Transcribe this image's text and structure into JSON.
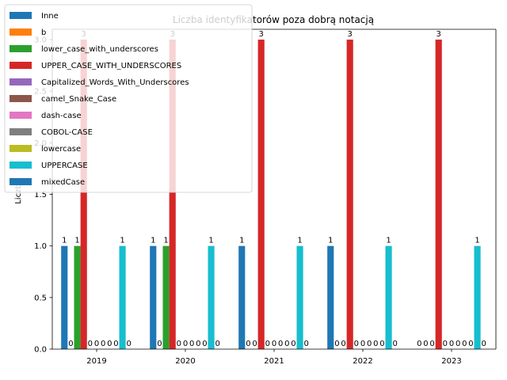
{
  "chart_data": {
    "type": "bar",
    "title": "Liczba identyfikatorów poza dobrą notacją",
    "xlabel": "",
    "ylabel": "Liczba",
    "categories": [
      "2019",
      "2020",
      "2021",
      "2022",
      "2023"
    ],
    "ylim": [
      0,
      3.1
    ],
    "yticks": [
      "0.0",
      "0.5",
      "1.0",
      "1.5",
      "2.0",
      "2.5",
      "3.0"
    ],
    "legend_position": "upper-left",
    "grid": false,
    "series": [
      {
        "name": "Inne",
        "color": "#1f77b4",
        "values": [
          1,
          1,
          1,
          1,
          0
        ]
      },
      {
        "name": "b",
        "color": "#ff7f0e",
        "values": [
          0,
          0,
          0,
          0,
          0
        ]
      },
      {
        "name": "lower_case_with_underscores",
        "color": "#2ca02c",
        "values": [
          1,
          1,
          0,
          0,
          0
        ]
      },
      {
        "name": "UPPER_CASE_WITH_UNDERSCORES",
        "color": "#d62728",
        "values": [
          3,
          3,
          3,
          3,
          3
        ]
      },
      {
        "name": "Capitalized_Words_With_Underscores",
        "color": "#9467bd",
        "values": [
          0,
          0,
          0,
          0,
          0
        ]
      },
      {
        "name": "camel_Snake_Case",
        "color": "#8c564b",
        "values": [
          0,
          0,
          0,
          0,
          0
        ]
      },
      {
        "name": "dash-case",
        "color": "#e377c2",
        "values": [
          0,
          0,
          0,
          0,
          0
        ]
      },
      {
        "name": "COBOL-CASE",
        "color": "#7f7f7f",
        "values": [
          0,
          0,
          0,
          0,
          0
        ]
      },
      {
        "name": "lowercase",
        "color": "#bcbd22",
        "values": [
          0,
          0,
          0,
          0,
          0
        ]
      },
      {
        "name": "UPPERCASE",
        "color": "#17becf",
        "values": [
          1,
          1,
          1,
          1,
          1
        ]
      },
      {
        "name": "mixedCase",
        "color": "#1f77b4",
        "values": [
          0,
          0,
          0,
          0,
          0
        ]
      }
    ]
  }
}
